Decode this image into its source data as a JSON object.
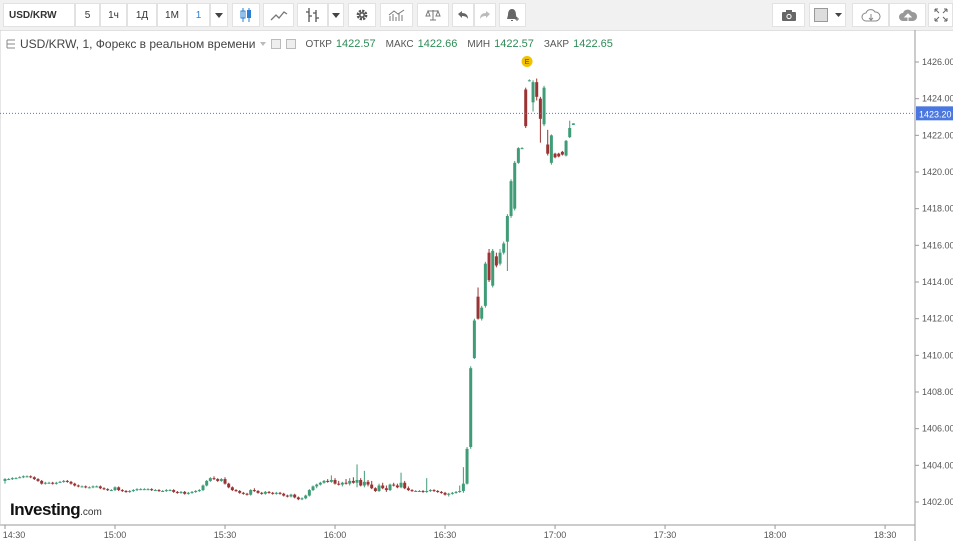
{
  "toolbar": {
    "symbol": "USD/KRW",
    "intervals": [
      "5",
      "1ч",
      "1Д",
      "1М",
      "1"
    ],
    "active_interval": "1",
    "icons": [
      "chevron-down-icon",
      "candlestick-icon",
      "line-chart-icon",
      "bar-style-icon",
      "chevron-down-icon",
      "gear-icon",
      "indicators-icon",
      "scales-icon",
      "undo-icon",
      "redo-icon",
      "alert-icon",
      "camera-icon",
      "color-square-icon",
      "chevron-down-icon",
      "cloud-download-icon",
      "cloud-upload-icon",
      "fullscreen-icon"
    ]
  },
  "legend": {
    "title": "USD/KRW, 1, Форекс в реальном времени",
    "open_label": "ОТКР",
    "open": "1422.57",
    "high_label": "МАКС",
    "high": "1422.66",
    "low_label": "МИН",
    "low": "1422.57",
    "close_label": "ЗАКР",
    "close": "1422.65"
  },
  "logo": {
    "name": "Investing",
    "suffix": ".com"
  },
  "colors": {
    "up": "#3f9c77",
    "down": "#9a3333",
    "price_line": "#4a78e0",
    "axis_text": "#555555"
  },
  "chart_data": {
    "type": "candlestick",
    "interval": "1",
    "ylim": [
      1401,
      1427
    ],
    "yticks": [
      "1402.00",
      "1404.00",
      "1406.00",
      "1408.00",
      "1410.00",
      "1412.00",
      "1414.00",
      "1416.00",
      "1418.00",
      "1420.00",
      "1422.00",
      "1424.00",
      "1426.00"
    ],
    "xticks": [
      "14:30",
      "15:00",
      "15:30",
      "16:00",
      "16:30",
      "17:00",
      "17:30",
      "18:00",
      "18:30"
    ],
    "xlim": [
      "14:29",
      "18:57"
    ],
    "current_price": "1423.20",
    "event_marker": {
      "label": "E",
      "time": "16:54",
      "price": 1425.7
    },
    "candles": [
      [
        "14:30",
        1403.15,
        1403.3,
        1403.0,
        1403.25
      ],
      [
        "14:31",
        1403.25,
        1403.3,
        1403.2,
        1403.25
      ],
      [
        "14:32",
        1403.25,
        1403.35,
        1403.2,
        1403.3
      ],
      [
        "14:33",
        1403.3,
        1403.35,
        1403.25,
        1403.3
      ],
      [
        "14:34",
        1403.3,
        1403.4,
        1403.3,
        1403.35
      ],
      [
        "14:35",
        1403.35,
        1403.45,
        1403.3,
        1403.4
      ],
      [
        "14:36",
        1403.4,
        1403.45,
        1403.35,
        1403.4
      ],
      [
        "14:37",
        1403.4,
        1403.45,
        1403.3,
        1403.35
      ],
      [
        "14:38",
        1403.35,
        1403.4,
        1403.2,
        1403.25
      ],
      [
        "14:39",
        1403.25,
        1403.3,
        1403.1,
        1403.15
      ],
      [
        "14:40",
        1403.15,
        1403.2,
        1402.95,
        1403.0
      ],
      [
        "14:41",
        1403.0,
        1403.1,
        1402.95,
        1403.05
      ],
      [
        "14:42",
        1403.05,
        1403.1,
        1403.0,
        1403.05
      ],
      [
        "14:43",
        1403.05,
        1403.1,
        1402.95,
        1403.0
      ],
      [
        "14:44",
        1403.0,
        1403.1,
        1402.95,
        1403.05
      ],
      [
        "14:45",
        1403.05,
        1403.15,
        1403.05,
        1403.1
      ],
      [
        "14:46",
        1403.1,
        1403.2,
        1403.05,
        1403.15
      ],
      [
        "14:47",
        1403.15,
        1403.2,
        1403.05,
        1403.1
      ],
      [
        "14:48",
        1403.1,
        1403.15,
        1402.95,
        1403.0
      ],
      [
        "14:49",
        1403.0,
        1403.05,
        1402.85,
        1402.9
      ],
      [
        "14:50",
        1402.9,
        1402.95,
        1402.8,
        1402.85
      ],
      [
        "14:51",
        1402.85,
        1402.9,
        1402.8,
        1402.85
      ],
      [
        "14:52",
        1402.85,
        1402.9,
        1402.75,
        1402.8
      ],
      [
        "14:53",
        1402.8,
        1402.85,
        1402.75,
        1402.8
      ],
      [
        "14:54",
        1402.8,
        1402.9,
        1402.75,
        1402.85
      ],
      [
        "14:55",
        1402.85,
        1402.9,
        1402.8,
        1402.85
      ],
      [
        "14:56",
        1402.85,
        1402.9,
        1402.7,
        1402.75
      ],
      [
        "14:57",
        1402.75,
        1402.8,
        1402.65,
        1402.7
      ],
      [
        "14:58",
        1402.7,
        1402.75,
        1402.6,
        1402.65
      ],
      [
        "14:59",
        1402.65,
        1402.7,
        1402.6,
        1402.65
      ],
      [
        "15:00",
        1402.65,
        1402.85,
        1402.6,
        1402.8
      ],
      [
        "15:01",
        1402.8,
        1402.85,
        1402.6,
        1402.65
      ],
      [
        "15:02",
        1402.65,
        1402.7,
        1402.55,
        1402.6
      ],
      [
        "15:03",
        1402.6,
        1402.65,
        1402.5,
        1402.55
      ],
      [
        "15:04",
        1402.55,
        1402.65,
        1402.5,
        1402.6
      ],
      [
        "15:05",
        1402.6,
        1402.7,
        1402.55,
        1402.65
      ],
      [
        "15:06",
        1402.65,
        1402.75,
        1402.6,
        1402.7
      ],
      [
        "15:07",
        1402.7,
        1402.75,
        1402.65,
        1402.7
      ],
      [
        "15:08",
        1402.7,
        1402.75,
        1402.65,
        1402.7
      ],
      [
        "15:09",
        1402.7,
        1402.75,
        1402.65,
        1402.7
      ],
      [
        "15:10",
        1402.7,
        1402.75,
        1402.6,
        1402.65
      ],
      [
        "15:11",
        1402.65,
        1402.7,
        1402.6,
        1402.65
      ],
      [
        "15:12",
        1402.65,
        1402.7,
        1402.55,
        1402.6
      ],
      [
        "15:13",
        1402.6,
        1402.65,
        1402.55,
        1402.6
      ],
      [
        "15:14",
        1402.6,
        1402.7,
        1402.55,
        1402.65
      ],
      [
        "15:15",
        1402.65,
        1402.7,
        1402.6,
        1402.65
      ],
      [
        "15:16",
        1402.65,
        1402.7,
        1402.5,
        1402.55
      ],
      [
        "15:17",
        1402.55,
        1402.6,
        1402.45,
        1402.5
      ],
      [
        "15:18",
        1402.5,
        1402.6,
        1402.45,
        1402.55
      ],
      [
        "15:19",
        1402.55,
        1402.6,
        1402.4,
        1402.45
      ],
      [
        "15:20",
        1402.45,
        1402.55,
        1402.4,
        1402.5
      ],
      [
        "15:21",
        1402.5,
        1402.6,
        1402.45,
        1402.55
      ],
      [
        "15:22",
        1402.55,
        1402.65,
        1402.5,
        1402.6
      ],
      [
        "15:23",
        1402.6,
        1402.7,
        1402.55,
        1402.65
      ],
      [
        "15:24",
        1402.65,
        1402.95,
        1402.6,
        1402.9
      ],
      [
        "15:25",
        1402.9,
        1403.2,
        1402.85,
        1403.15
      ],
      [
        "15:26",
        1403.15,
        1403.35,
        1403.1,
        1403.3
      ],
      [
        "15:27",
        1403.3,
        1403.4,
        1403.2,
        1403.25
      ],
      [
        "15:28",
        1403.25,
        1403.3,
        1403.1,
        1403.15
      ],
      [
        "15:29",
        1403.15,
        1403.3,
        1403.1,
        1403.25
      ],
      [
        "15:30",
        1403.25,
        1403.35,
        1402.95,
        1403.0
      ],
      [
        "15:31",
        1403.0,
        1403.05,
        1402.75,
        1402.8
      ],
      [
        "15:32",
        1402.8,
        1402.85,
        1402.6,
        1402.65
      ],
      [
        "15:33",
        1402.65,
        1402.7,
        1402.55,
        1402.6
      ],
      [
        "15:34",
        1402.6,
        1402.65,
        1402.45,
        1402.5
      ],
      [
        "15:35",
        1402.5,
        1402.55,
        1402.4,
        1402.45
      ],
      [
        "15:36",
        1402.45,
        1402.5,
        1402.35,
        1402.4
      ],
      [
        "15:37",
        1402.4,
        1402.7,
        1402.35,
        1402.65
      ],
      [
        "15:38",
        1402.65,
        1402.75,
        1402.55,
        1402.6
      ],
      [
        "15:39",
        1402.6,
        1402.65,
        1402.45,
        1402.5
      ],
      [
        "15:40",
        1402.5,
        1402.55,
        1402.4,
        1402.45
      ],
      [
        "15:41",
        1402.45,
        1402.6,
        1402.4,
        1402.55
      ],
      [
        "15:42",
        1402.55,
        1402.6,
        1402.45,
        1402.5
      ],
      [
        "15:43",
        1402.5,
        1402.55,
        1402.4,
        1402.45
      ],
      [
        "15:44",
        1402.45,
        1402.55,
        1402.4,
        1402.5
      ],
      [
        "15:45",
        1402.5,
        1402.55,
        1402.4,
        1402.45
      ],
      [
        "15:46",
        1402.45,
        1402.5,
        1402.3,
        1402.35
      ],
      [
        "15:47",
        1402.35,
        1402.4,
        1402.25,
        1402.3
      ],
      [
        "15:48",
        1402.3,
        1402.45,
        1402.25,
        1402.4
      ],
      [
        "15:49",
        1402.4,
        1402.45,
        1402.2,
        1402.25
      ],
      [
        "15:50",
        1402.25,
        1402.3,
        1402.1,
        1402.15
      ],
      [
        "15:51",
        1402.15,
        1402.25,
        1402.1,
        1402.2
      ],
      [
        "15:52",
        1402.2,
        1402.4,
        1402.15,
        1402.35
      ],
      [
        "15:53",
        1402.35,
        1402.7,
        1402.3,
        1402.65
      ],
      [
        "15:54",
        1402.65,
        1402.9,
        1402.6,
        1402.85
      ],
      [
        "15:55",
        1402.85,
        1403.0,
        1402.75,
        1402.95
      ],
      [
        "15:56",
        1402.95,
        1403.1,
        1402.9,
        1403.05
      ],
      [
        "15:57",
        1403.05,
        1403.2,
        1403.0,
        1403.15
      ],
      [
        "15:58",
        1403.15,
        1403.25,
        1403.05,
        1403.1
      ],
      [
        "15:59",
        1403.1,
        1403.45,
        1403.05,
        1403.2
      ],
      [
        "16:00",
        1403.2,
        1403.3,
        1402.95,
        1403.0
      ],
      [
        "16:01",
        1403.0,
        1403.15,
        1402.9,
        1402.95
      ],
      [
        "16:02",
        1402.95,
        1403.1,
        1402.85,
        1403.05
      ],
      [
        "16:03",
        1403.05,
        1403.25,
        1402.95,
        1403.0
      ],
      [
        "16:04",
        1403.0,
        1403.3,
        1402.9,
        1403.15
      ],
      [
        "16:05",
        1403.15,
        1403.35,
        1403.0,
        1403.05
      ],
      [
        "16:06",
        1403.05,
        1404.05,
        1402.8,
        1403.2
      ],
      [
        "16:07",
        1403.2,
        1403.3,
        1402.85,
        1402.9
      ],
      [
        "16:08",
        1402.9,
        1403.7,
        1402.8,
        1403.1
      ],
      [
        "16:09",
        1403.1,
        1403.2,
        1402.85,
        1402.95
      ],
      [
        "16:10",
        1402.95,
        1403.15,
        1402.7,
        1402.75
      ],
      [
        "16:11",
        1402.75,
        1402.8,
        1402.55,
        1402.6
      ],
      [
        "16:12",
        1402.6,
        1403.0,
        1402.55,
        1402.9
      ],
      [
        "16:13",
        1402.9,
        1403.05,
        1402.7,
        1402.75
      ],
      [
        "16:14",
        1402.75,
        1402.9,
        1402.55,
        1402.65
      ],
      [
        "16:15",
        1402.65,
        1403.0,
        1402.6,
        1402.95
      ],
      [
        "16:16",
        1402.95,
        1403.05,
        1402.85,
        1402.9
      ],
      [
        "16:17",
        1402.9,
        1403.0,
        1402.75,
        1402.8
      ],
      [
        "16:18",
        1402.8,
        1403.6,
        1402.75,
        1403.05
      ],
      [
        "16:19",
        1403.05,
        1403.15,
        1402.7,
        1402.75
      ],
      [
        "16:20",
        1402.75,
        1402.85,
        1402.6,
        1402.65
      ],
      [
        "16:21",
        1402.65,
        1402.7,
        1402.55,
        1402.6
      ],
      [
        "16:22",
        1402.6,
        1402.65,
        1402.55,
        1402.6
      ],
      [
        "16:23",
        1402.6,
        1402.65,
        1402.55,
        1402.6
      ],
      [
        "16:24",
        1402.6,
        1402.65,
        1402.5,
        1402.55
      ],
      [
        "16:25",
        1402.55,
        1403.3,
        1402.5,
        1402.6
      ],
      [
        "16:26",
        1402.6,
        1402.7,
        1402.55,
        1402.65
      ],
      [
        "16:27",
        1402.65,
        1402.7,
        1402.55,
        1402.6
      ],
      [
        "16:28",
        1402.6,
        1402.65,
        1402.5,
        1402.55
      ],
      [
        "16:29",
        1402.55,
        1402.6,
        1402.45,
        1402.5
      ],
      [
        "16:30",
        1402.5,
        1402.55,
        1402.35,
        1402.4
      ],
      [
        "16:31",
        1402.4,
        1402.5,
        1402.3,
        1402.45
      ],
      [
        "16:32",
        1402.45,
        1402.55,
        1402.4,
        1402.5
      ],
      [
        "16:33",
        1402.5,
        1402.6,
        1402.45,
        1402.55
      ],
      [
        "16:34",
        1402.55,
        1402.9,
        1402.5,
        1402.6
      ],
      [
        "16:35",
        1402.6,
        1403.9,
        1402.5,
        1403.0
      ],
      [
        "16:36",
        1403.0,
        1405.0,
        1402.95,
        1404.9
      ],
      [
        "16:37",
        1405.0,
        1409.4,
        1404.9,
        1409.3
      ],
      [
        "16:38",
        1409.85,
        1412.0,
        1409.8,
        1411.9
      ],
      [
        "16:39",
        1413.2,
        1413.7,
        1411.95,
        1412.0
      ],
      [
        "16:40",
        1412.0,
        1412.7,
        1411.9,
        1412.6
      ],
      [
        "16:41",
        1412.7,
        1415.1,
        1412.6,
        1415.0
      ],
      [
        "16:42",
        1415.6,
        1415.8,
        1414.0,
        1414.1
      ],
      [
        "16:43",
        1413.8,
        1415.8,
        1413.7,
        1415.7
      ],
      [
        "16:44",
        1415.4,
        1415.6,
        1414.8,
        1414.9
      ],
      [
        "16:45",
        1415.0,
        1415.8,
        1414.9,
        1415.6
      ],
      [
        "16:46",
        1415.6,
        1416.2,
        1415.5,
        1416.1
      ],
      [
        "16:47",
        1416.2,
        1417.7,
        1414.6,
        1417.6
      ],
      [
        "16:48",
        1417.6,
        1419.6,
        1417.5,
        1419.5
      ],
      [
        "16:49",
        1418.0,
        1420.6,
        1417.9,
        1420.5
      ],
      [
        "16:50",
        1420.5,
        1421.35,
        1420.45,
        1421.3
      ],
      [
        "16:51",
        1421.3,
        1421.35,
        1421.25,
        1421.3
      ],
      [
        "16:52",
        1424.5,
        1424.6,
        1422.4,
        1422.5
      ],
      [
        "16:53",
        1425.0,
        1425.05,
        1424.95,
        1425.0
      ],
      [
        "16:54",
        1423.8,
        1425.0,
        1423.3,
        1424.9
      ],
      [
        "16:55",
        1424.9,
        1425.1,
        1423.9,
        1424.1
      ],
      [
        "16:56",
        1424.0,
        1424.1,
        1421.6,
        1422.9
      ],
      [
        "16:57",
        1422.6,
        1424.7,
        1422.5,
        1424.6
      ],
      [
        "16:58",
        1421.5,
        1422.3,
        1420.9,
        1421.0
      ],
      [
        "16:59",
        1420.5,
        1422.05,
        1420.4,
        1422.0
      ],
      [
        "17:00",
        1421.0,
        1421.05,
        1420.75,
        1420.8
      ],
      [
        "17:01",
        1421.0,
        1421.05,
        1420.8,
        1420.85
      ],
      [
        "17:02",
        1421.1,
        1421.15,
        1420.9,
        1420.95
      ],
      [
        "17:03",
        1420.9,
        1421.75,
        1420.85,
        1421.7
      ],
      [
        "17:04",
        1421.9,
        1422.8,
        1421.85,
        1422.4
      ],
      [
        "17:05",
        1422.57,
        1422.66,
        1422.57,
        1422.65
      ]
    ]
  }
}
